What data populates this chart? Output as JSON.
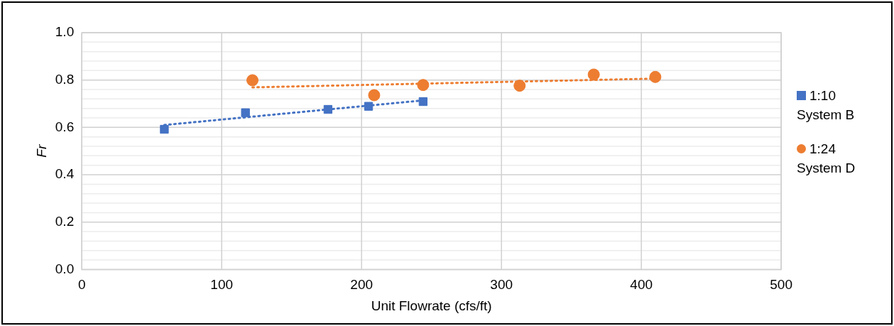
{
  "chart_data": {
    "type": "scatter",
    "xlabel": "Unit Flowrate (cfs/ft)",
    "ylabel": "Fr",
    "xlim": [
      0,
      500
    ],
    "xticks": [
      0,
      100,
      200,
      300,
      400,
      500
    ],
    "ylim": [
      0,
      1.0
    ],
    "yticks": [
      {
        "value": 0,
        "label": "0.0"
      },
      {
        "value": 0.04,
        "label": null
      },
      {
        "value": 0.08,
        "label": null
      },
      {
        "value": 0.12,
        "label": null
      },
      {
        "value": 0.16,
        "label": null
      },
      {
        "value": 0.2,
        "label": "0.2"
      },
      {
        "value": 0.24,
        "label": null
      },
      {
        "value": 0.28,
        "label": null
      },
      {
        "value": 0.32,
        "label": null
      },
      {
        "value": 0.36,
        "label": null
      },
      {
        "value": 0.4,
        "label": "0.4"
      },
      {
        "value": 0.44,
        "label": null
      },
      {
        "value": 0.48,
        "label": null
      },
      {
        "value": 0.52,
        "label": null
      },
      {
        "value": 0.56,
        "label": null
      },
      {
        "value": 0.6,
        "label": "0.6"
      },
      {
        "value": 0.64,
        "label": null
      },
      {
        "value": 0.68,
        "label": null
      },
      {
        "value": 0.72,
        "label": null
      },
      {
        "value": 0.76,
        "label": null
      },
      {
        "value": 0.8,
        "label": "0.8"
      },
      {
        "value": 0.84,
        "label": null
      },
      {
        "value": 0.88,
        "label": null
      },
      {
        "value": 0.92,
        "label": null
      },
      {
        "value": 0.96,
        "label": null
      },
      {
        "value": 1.0,
        "label": "1.0"
      }
    ],
    "grid": true,
    "legend": "right",
    "series": [
      {
        "name": "1:10 System B",
        "color": "#4472c4",
        "marker": "square",
        "x": [
          59,
          117,
          176,
          205,
          244
        ],
        "values": [
          0.592,
          0.662,
          0.676,
          0.689,
          0.709
        ]
      },
      {
        "name": "1:24 System D",
        "color": "#ed7d31",
        "marker": "circle",
        "x": [
          122,
          209,
          244,
          313,
          366,
          410
        ],
        "values": [
          0.799,
          0.736,
          0.779,
          0.776,
          0.823,
          0.813
        ]
      },
      {
        "type": "line",
        "color": "#4472c4",
        "marker": "none",
        "line_style": "dotted",
        "x": [
          59,
          244
        ],
        "values": [
          0.61,
          0.714
        ]
      },
      {
        "type": "line",
        "color": "#ed7d31",
        "marker": "none",
        "line_style": "dotted",
        "x": [
          122,
          410
        ],
        "values": [
          0.769,
          0.806
        ]
      }
    ]
  }
}
